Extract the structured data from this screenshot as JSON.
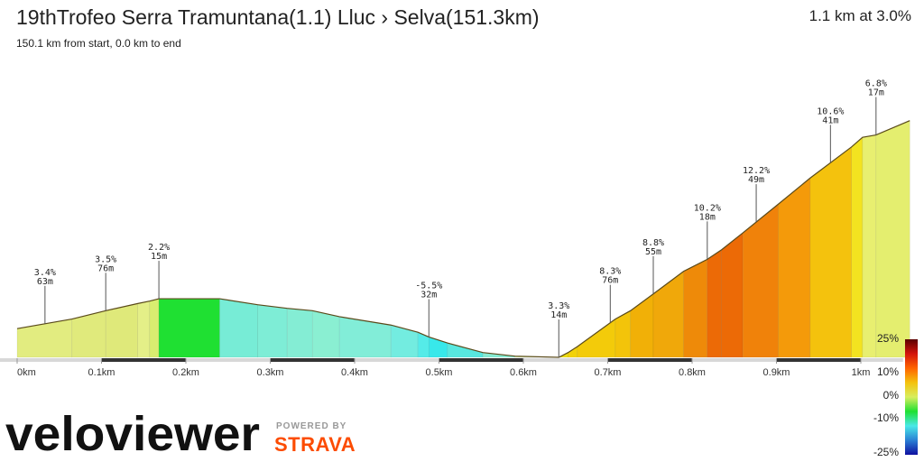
{
  "header": {
    "title": "19thTrofeo Serra Tramuntana(1.1) Lluc › Selva(151.3km)",
    "subtitle": "150.1 km from start, 0.0 km to end",
    "summary": "1.1 km at 3.0%"
  },
  "branding": {
    "logo_text": "veloviewer",
    "powered_by": "POWERED BY",
    "strava": "STRAVA",
    "strava_color": "#fc4c02"
  },
  "chart_data": {
    "type": "area",
    "title": "",
    "xlabel": "",
    "ylabel": "",
    "x_unit": "km",
    "xlim": [
      0,
      1.05
    ],
    "x_ticks": [
      {
        "value": 0,
        "label": "0km"
      },
      {
        "value": 0.1,
        "label": "0.1km"
      },
      {
        "value": 0.2,
        "label": "0.2km"
      },
      {
        "value": 0.3,
        "label": "0.3km"
      },
      {
        "value": 0.4,
        "label": "0.4km"
      },
      {
        "value": 0.5,
        "label": "0.5km"
      },
      {
        "value": 0.6,
        "label": "0.6km"
      },
      {
        "value": 0.7,
        "label": "0.7km"
      },
      {
        "value": 0.8,
        "label": "0.8km"
      },
      {
        "value": 0.9,
        "label": "0.9km"
      },
      {
        "value": 1.0,
        "label": "1km"
      }
    ],
    "elevation_relative_m": [
      {
        "x": 0.0,
        "y": 12.0
      },
      {
        "x": 0.065,
        "y": 16.0
      },
      {
        "x": 0.105,
        "y": 19.5
      },
      {
        "x": 0.143,
        "y": 22.5
      },
      {
        "x": 0.157,
        "y": 23.5
      },
      {
        "x": 0.168,
        "y": 24.5
      },
      {
        "x": 0.24,
        "y": 24.5
      },
      {
        "x": 0.285,
        "y": 22.0
      },
      {
        "x": 0.32,
        "y": 20.5
      },
      {
        "x": 0.35,
        "y": 19.5
      },
      {
        "x": 0.382,
        "y": 17.0
      },
      {
        "x": 0.443,
        "y": 13.5
      },
      {
        "x": 0.475,
        "y": 10.5
      },
      {
        "x": 0.488,
        "y": 8.5
      },
      {
        "x": 0.51,
        "y": 6.0
      },
      {
        "x": 0.552,
        "y": 2.0
      },
      {
        "x": 0.59,
        "y": 0.5
      },
      {
        "x": 0.642,
        "y": 0.0
      },
      {
        "x": 0.653,
        "y": 2.0
      },
      {
        "x": 0.664,
        "y": 4.5
      },
      {
        "x": 0.709,
        "y": 16.0
      },
      {
        "x": 0.727,
        "y": 19.5
      },
      {
        "x": 0.754,
        "y": 26.5
      },
      {
        "x": 0.79,
        "y": 36.0
      },
      {
        "x": 0.818,
        "y": 41.0
      },
      {
        "x": 0.835,
        "y": 45.0
      },
      {
        "x": 0.86,
        "y": 52.0
      },
      {
        "x": 0.902,
        "y": 64.0
      },
      {
        "x": 0.94,
        "y": 75.0
      },
      {
        "x": 0.989,
        "y": 88.0
      },
      {
        "x": 1.002,
        "y": 92.0
      },
      {
        "x": 1.018,
        "y": 93.0
      },
      {
        "x": 1.058,
        "y": 99.0
      }
    ],
    "segment_colors": [
      "#e2ec80",
      "#e0ea7c",
      "#dfe97a",
      "#e4ef88",
      "#d8ed70",
      "#1fe032",
      "#77ecd6",
      "#7eedd6",
      "#84edd4",
      "#8aefd2",
      "#82edd8",
      "#73ece0",
      "#55ebe8",
      "#38e8ea",
      "#58e8e0",
      "#86ecd4",
      "#cfe7a0",
      "#eddd10",
      "#f2d20a",
      "#f3cb0a",
      "#f3c40a",
      "#f1b007",
      "#f0a80a",
      "#ee8a09",
      "#ec6a06",
      "#ec6a06",
      "#f0820a",
      "#f49a0a",
      "#f4c20d",
      "#f3e320",
      "#e8ef70",
      "#e4ee6f"
    ],
    "annotations": [
      {
        "x": 0.033,
        "grade": "3.4%",
        "length": "63m"
      },
      {
        "x": 0.105,
        "grade": "3.5%",
        "length": "76m"
      },
      {
        "x": 0.168,
        "grade": "2.2%",
        "length": "15m"
      },
      {
        "x": 0.488,
        "grade": "-5.5%",
        "length": "32m"
      },
      {
        "x": 0.642,
        "grade": "3.3%",
        "length": "14m"
      },
      {
        "x": 0.703,
        "grade": "8.3%",
        "length": "76m"
      },
      {
        "x": 0.754,
        "grade": "8.8%",
        "length": "55m"
      },
      {
        "x": 0.818,
        "grade": "10.2%",
        "length": "18m"
      },
      {
        "x": 0.876,
        "grade": "12.2%",
        "length": "49m"
      },
      {
        "x": 0.964,
        "grade": "10.6%",
        "length": "41m"
      },
      {
        "x": 1.018,
        "grade": "6.8%",
        "length": "17m"
      }
    ],
    "legend": {
      "type": "gradient",
      "placement": "right",
      "labels": [
        "25%",
        "10%",
        "0%",
        "-10%",
        "-25%"
      ],
      "stops": [
        "#5a0000",
        "#d4140b",
        "#ff6400",
        "#f4c20d",
        "#d8ee5e",
        "#1fe032",
        "#49e8e8",
        "#2a7fd4",
        "#1010a0"
      ]
    }
  }
}
